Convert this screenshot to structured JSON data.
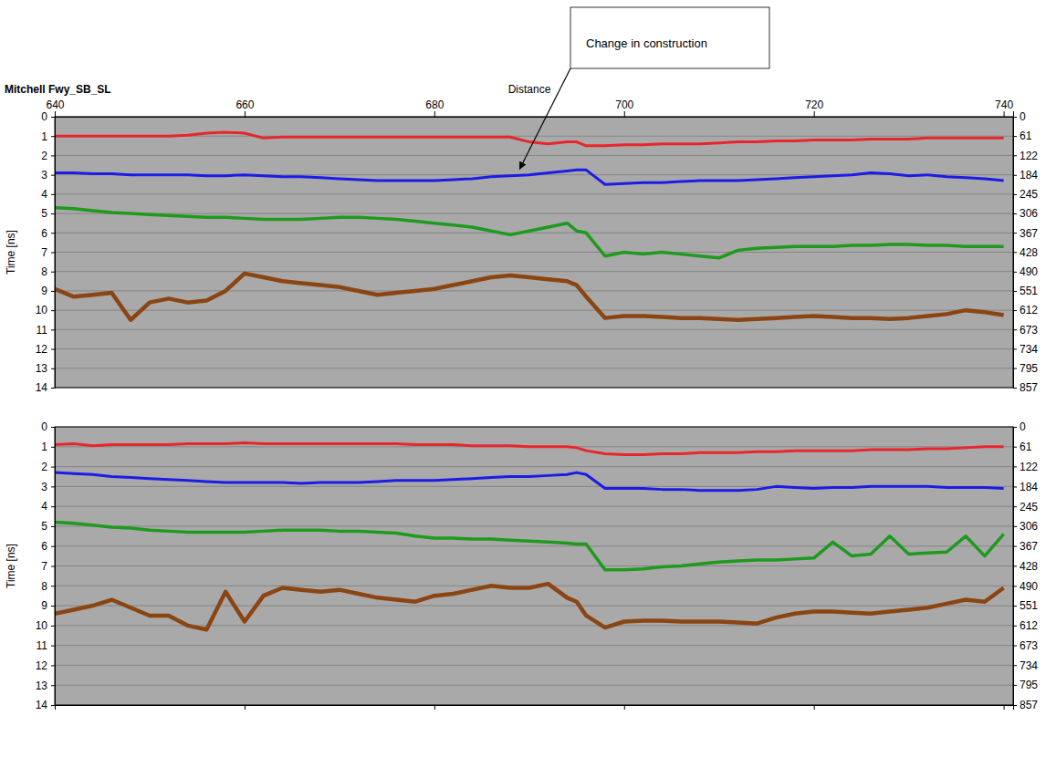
{
  "chart_data": [
    {
      "type": "line",
      "title": "Mitchell Fwy_SB_SL",
      "x_label": "Distance",
      "y_label": "Time [ns]",
      "annotation": {
        "text": "Change in construction",
        "x": 689,
        "y": 2.7
      },
      "grid": true,
      "x": [
        640,
        642,
        644,
        646,
        648,
        650,
        652,
        654,
        656,
        658,
        660,
        662,
        664,
        666,
        668,
        670,
        672,
        674,
        676,
        678,
        680,
        682,
        684,
        686,
        688,
        690,
        692,
        694,
        695,
        696,
        698,
        700,
        702,
        704,
        706,
        708,
        710,
        712,
        714,
        716,
        718,
        720,
        722,
        724,
        726,
        728,
        730,
        732,
        734,
        736,
        738,
        740
      ],
      "xlim": [
        640,
        741
      ],
      "xticks": [
        640,
        660,
        680,
        700,
        720,
        740
      ],
      "ylim": [
        0,
        14
      ],
      "yticks": [
        0,
        1,
        2,
        3,
        4,
        5,
        6,
        7,
        8,
        9,
        10,
        11,
        12,
        13,
        14
      ],
      "y2lim": [
        0,
        857
      ],
      "y2ticks": [
        0,
        61,
        122,
        184,
        245,
        306,
        367,
        428,
        490,
        551,
        612,
        673,
        734,
        795,
        857
      ],
      "series": [
        {
          "color": "#e8262a",
          "values": [
            1.0,
            1.0,
            1.0,
            1.0,
            1.0,
            1.0,
            1.0,
            0.95,
            0.85,
            0.8,
            0.85,
            1.1,
            1.05,
            1.05,
            1.05,
            1.05,
            1.05,
            1.05,
            1.05,
            1.05,
            1.05,
            1.05,
            1.05,
            1.05,
            1.05,
            1.3,
            1.4,
            1.3,
            1.3,
            1.5,
            1.5,
            1.45,
            1.45,
            1.4,
            1.4,
            1.4,
            1.35,
            1.3,
            1.3,
            1.25,
            1.25,
            1.2,
            1.2,
            1.2,
            1.15,
            1.15,
            1.15,
            1.1,
            1.1,
            1.1,
            1.1,
            1.1
          ]
        },
        {
          "color": "#1c1ce6",
          "values": [
            2.9,
            2.9,
            2.95,
            2.95,
            3.0,
            3.0,
            3.0,
            3.0,
            3.05,
            3.05,
            3.0,
            3.05,
            3.1,
            3.1,
            3.15,
            3.2,
            3.25,
            3.3,
            3.3,
            3.3,
            3.3,
            3.25,
            3.2,
            3.1,
            3.05,
            3.0,
            2.9,
            2.8,
            2.75,
            2.75,
            3.5,
            3.45,
            3.4,
            3.4,
            3.35,
            3.3,
            3.3,
            3.3,
            3.25,
            3.2,
            3.15,
            3.1,
            3.05,
            3.0,
            2.9,
            2.95,
            3.05,
            3.0,
            3.1,
            3.15,
            3.2,
            3.3
          ]
        },
        {
          "color": "#1e9a1e",
          "values": [
            4.7,
            4.75,
            4.85,
            4.95,
            5.0,
            5.05,
            5.1,
            5.15,
            5.2,
            5.2,
            5.25,
            5.3,
            5.3,
            5.3,
            5.25,
            5.2,
            5.2,
            5.25,
            5.3,
            5.4,
            5.5,
            5.6,
            5.7,
            5.9,
            6.1,
            5.9,
            5.7,
            5.5,
            5.9,
            6.0,
            7.2,
            7.0,
            7.1,
            7.0,
            7.1,
            7.2,
            7.3,
            6.9,
            6.8,
            6.75,
            6.7,
            6.7,
            6.7,
            6.65,
            6.65,
            6.6,
            6.6,
            6.65,
            6.65,
            6.7,
            6.7,
            6.7
          ]
        },
        {
          "color": "#8b4513",
          "values": [
            8.9,
            9.3,
            9.2,
            9.1,
            10.5,
            9.6,
            9.4,
            9.6,
            9.5,
            9.0,
            8.1,
            8.3,
            8.5,
            8.6,
            8.7,
            8.8,
            9.0,
            9.2,
            9.1,
            9.0,
            8.9,
            8.7,
            8.5,
            8.3,
            8.2,
            8.3,
            8.4,
            8.5,
            8.7,
            9.3,
            10.4,
            10.3,
            10.3,
            10.35,
            10.4,
            10.4,
            10.45,
            10.5,
            10.45,
            10.4,
            10.35,
            10.3,
            10.35,
            10.4,
            10.4,
            10.45,
            10.4,
            10.3,
            10.2,
            10.0,
            10.1,
            10.25
          ]
        }
      ]
    },
    {
      "type": "line",
      "y_label": "Time [ns]",
      "grid": true,
      "tick_labels": "y",
      "x": [
        640,
        642,
        644,
        646,
        648,
        650,
        652,
        654,
        656,
        658,
        660,
        662,
        664,
        666,
        668,
        670,
        672,
        674,
        676,
        678,
        680,
        682,
        684,
        686,
        688,
        690,
        692,
        694,
        695,
        696,
        698,
        700,
        702,
        704,
        706,
        708,
        710,
        712,
        714,
        716,
        718,
        720,
        722,
        724,
        726,
        728,
        730,
        732,
        734,
        736,
        738,
        740
      ],
      "xlim": [
        640,
        741
      ],
      "xticks": [
        640,
        660,
        680,
        700,
        720,
        740
      ],
      "ylim": [
        0,
        14
      ],
      "yticks": [
        0,
        1,
        2,
        3,
        4,
        5,
        6,
        7,
        8,
        9,
        10,
        11,
        12,
        13,
        14
      ],
      "y2lim": [
        0,
        857
      ],
      "y2ticks": [
        0,
        61,
        122,
        184,
        245,
        306,
        367,
        428,
        490,
        551,
        612,
        673,
        734,
        795,
        857
      ],
      "series": [
        {
          "color": "#e8262a",
          "values": [
            0.9,
            0.85,
            0.95,
            0.9,
            0.9,
            0.9,
            0.9,
            0.85,
            0.85,
            0.85,
            0.8,
            0.85,
            0.85,
            0.85,
            0.85,
            0.85,
            0.85,
            0.85,
            0.85,
            0.9,
            0.9,
            0.9,
            0.95,
            0.95,
            0.95,
            1.0,
            1.0,
            1.0,
            1.05,
            1.2,
            1.35,
            1.4,
            1.4,
            1.35,
            1.35,
            1.3,
            1.3,
            1.3,
            1.25,
            1.25,
            1.2,
            1.2,
            1.2,
            1.2,
            1.15,
            1.15,
            1.15,
            1.1,
            1.1,
            1.05,
            1.0,
            1.0
          ]
        },
        {
          "color": "#1c1ce6",
          "values": [
            2.3,
            2.35,
            2.4,
            2.5,
            2.55,
            2.6,
            2.65,
            2.7,
            2.75,
            2.8,
            2.8,
            2.8,
            2.8,
            2.85,
            2.8,
            2.8,
            2.8,
            2.75,
            2.7,
            2.7,
            2.7,
            2.65,
            2.6,
            2.55,
            2.5,
            2.5,
            2.45,
            2.4,
            2.3,
            2.4,
            3.1,
            3.1,
            3.1,
            3.15,
            3.15,
            3.2,
            3.2,
            3.2,
            3.15,
            3.0,
            3.05,
            3.1,
            3.05,
            3.05,
            3.0,
            3.0,
            3.0,
            3.0,
            3.05,
            3.05,
            3.05,
            3.1
          ]
        },
        {
          "color": "#1e9a1e",
          "values": [
            4.8,
            4.85,
            4.95,
            5.05,
            5.1,
            5.2,
            5.25,
            5.3,
            5.3,
            5.3,
            5.3,
            5.25,
            5.2,
            5.2,
            5.2,
            5.25,
            5.25,
            5.3,
            5.35,
            5.5,
            5.6,
            5.6,
            5.65,
            5.65,
            5.7,
            5.75,
            5.8,
            5.85,
            5.9,
            5.9,
            7.2,
            7.2,
            7.15,
            7.05,
            7.0,
            6.9,
            6.8,
            6.75,
            6.7,
            6.7,
            6.65,
            6.6,
            5.8,
            6.5,
            6.4,
            5.5,
            6.4,
            6.35,
            6.3,
            5.5,
            6.5,
            5.4
          ]
        },
        {
          "color": "#8b4513",
          "values": [
            9.4,
            9.2,
            9.0,
            8.7,
            9.1,
            9.5,
            9.5,
            10.0,
            10.2,
            8.3,
            9.8,
            8.5,
            8.1,
            8.2,
            8.3,
            8.2,
            8.4,
            8.6,
            8.7,
            8.8,
            8.5,
            8.4,
            8.2,
            8.0,
            8.1,
            8.1,
            7.9,
            8.6,
            8.8,
            9.5,
            10.1,
            9.8,
            9.75,
            9.75,
            9.8,
            9.8,
            9.8,
            9.85,
            9.9,
            9.6,
            9.4,
            9.3,
            9.3,
            9.35,
            9.4,
            9.3,
            9.2,
            9.1,
            8.9,
            8.7,
            8.8,
            8.1
          ]
        }
      ]
    }
  ]
}
